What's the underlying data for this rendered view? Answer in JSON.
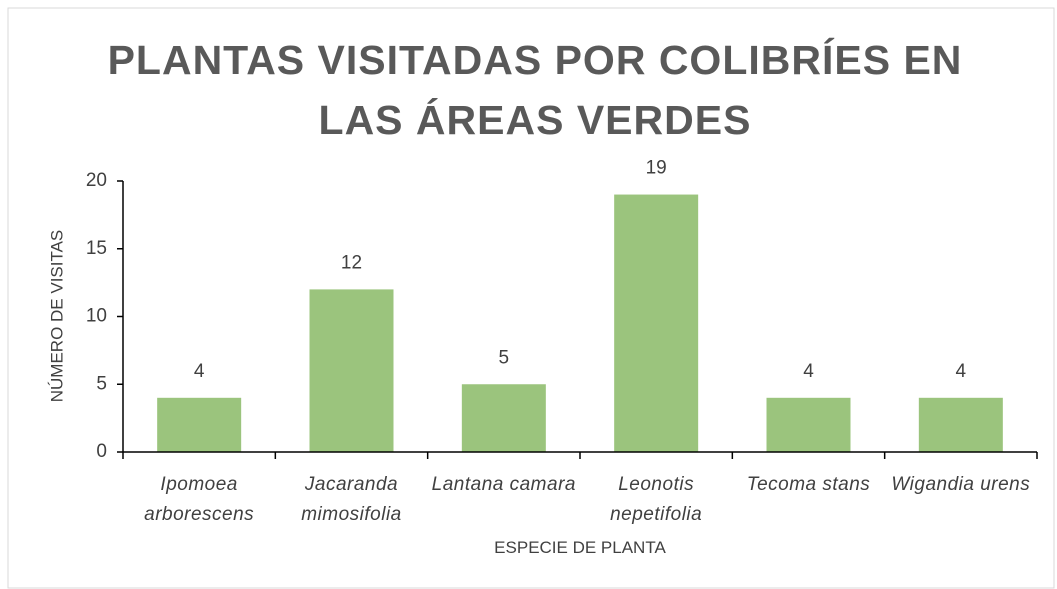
{
  "chart_data": {
    "type": "bar",
    "title": "PLANTAS VISITADAS POR COLIBRÍES EN LAS ÁREAS VERDES",
    "x_label": "ESPECIE DE PLANTA",
    "y_label": "NÚMERO DE VISITAS",
    "categories": [
      "Ipomoea arborescens",
      "Jacaranda mimosifolia",
      "Lantana camara",
      "Leonotis nepetifolia",
      "Tecoma stans",
      "Wigandia urens"
    ],
    "values": [
      4,
      12,
      5,
      19,
      4,
      4
    ],
    "color": "#9bc47d",
    "ylim": [
      0,
      20
    ],
    "yticks": [
      0,
      5,
      10,
      15,
      20
    ],
    "grid": false
  }
}
